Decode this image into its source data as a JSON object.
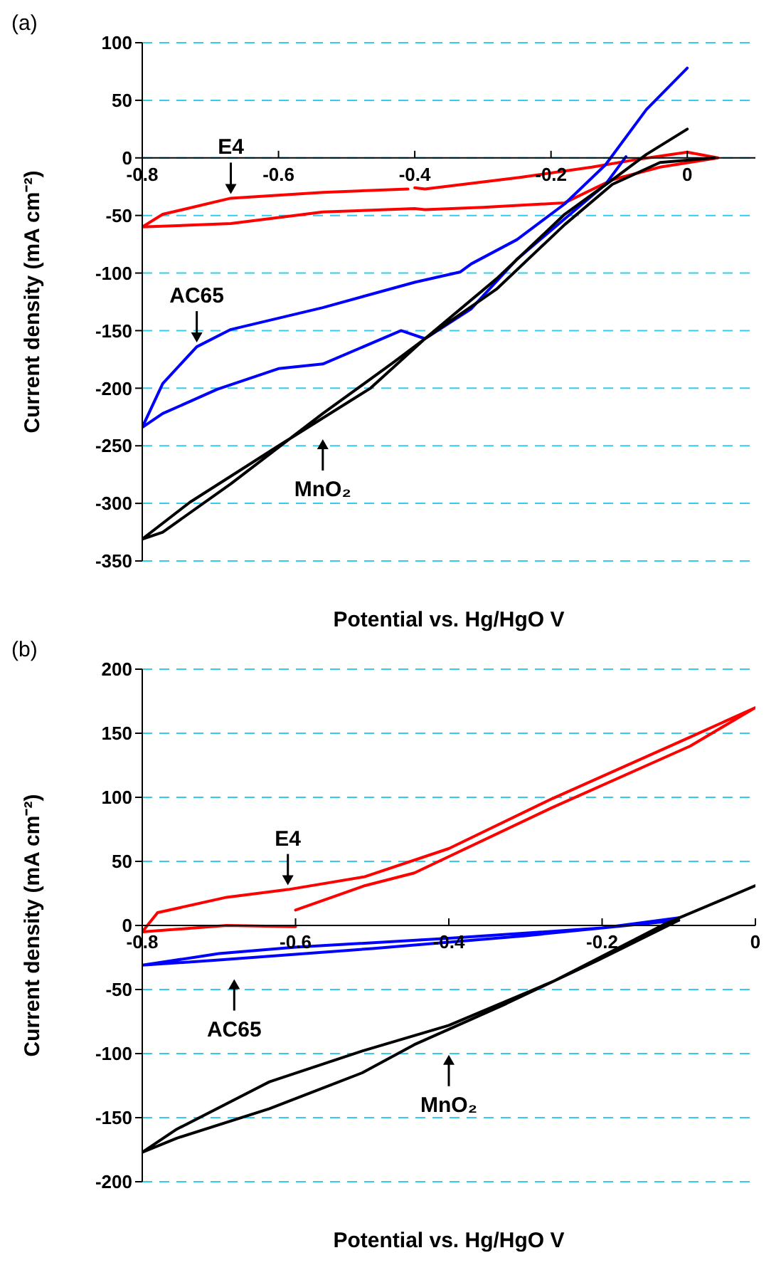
{
  "chart_data": [
    {
      "type": "line",
      "title": "(a)",
      "xlabel": "Potential vs. Hg/HgO V",
      "ylabel": "Current density (mA cm⁻²)",
      "xlim": [
        -0.8,
        0.1
      ],
      "xticks": [
        -0.8,
        -0.6,
        -0.4,
        -0.2,
        0
      ],
      "ylim": [
        -350,
        100
      ],
      "yticks": [
        100,
        50,
        0,
        -50,
        -100,
        -150,
        -200,
        -250,
        -300,
        -350
      ],
      "grid": "y",
      "marker": "none",
      "line_style": "solid",
      "series": [
        {
          "color": "#ff0000",
          "x": [
            -0.4,
            -0.385,
            -0.246,
            -0.14,
            -0.07,
            0,
            0.045,
            -0.04,
            -0.11,
            -0.18,
            -0.3,
            -0.385,
            -0.4,
            -0.535,
            -0.67,
            -0.8,
            -0.77,
            -0.67,
            -0.535,
            -0.41
          ],
          "values": [
            -26,
            -27,
            -17,
            -8,
            -1,
            5,
            0,
            -8,
            -19,
            -39,
            -43,
            -45,
            -44,
            -47,
            -57,
            -60,
            -49,
            -35,
            -30,
            -27
          ]
        },
        {
          "color": "#0000ff",
          "x": [
            -0.09,
            -0.12,
            -0.18,
            -0.25,
            -0.317,
            -0.385,
            -0.42,
            -0.535,
            -0.6,
            -0.69,
            -0.77,
            -0.8,
            -0.77,
            -0.72,
            -0.67,
            -0.535,
            -0.4,
            -0.333,
            -0.317,
            -0.25,
            -0.18,
            -0.12,
            -0.06,
            0
          ],
          "values": [
            1,
            -23,
            -53,
            -88,
            -131,
            -157,
            -150,
            -179,
            -183,
            -201,
            -222,
            -234,
            -196,
            -164,
            -149,
            -130,
            -108,
            -99,
            -92,
            -71,
            -40,
            -6,
            42,
            78
          ]
        },
        {
          "color": "#000000",
          "x": [
            0.04,
            -0.04,
            -0.11,
            -0.18,
            -0.28,
            -0.385,
            -0.43,
            -0.535,
            -0.67,
            -0.77,
            -0.8,
            -0.73,
            -0.6,
            -0.465,
            -0.385,
            -0.28,
            -0.18,
            -0.11,
            -0.06,
            0
          ],
          "values": [
            0,
            -4,
            -23,
            -58,
            -114,
            -157,
            -177,
            -222,
            -283,
            -325,
            -331,
            -299,
            -250,
            -200,
            -157,
            -105,
            -49,
            -19,
            3,
            25
          ]
        }
      ],
      "annotations": [
        {
          "text": "E4",
          "x": -0.67,
          "y": -35
        },
        {
          "text": "AC65",
          "x": -0.72,
          "y": -164
        },
        {
          "text": "MnO₂",
          "x": -0.535,
          "y": -222
        }
      ]
    },
    {
      "type": "line",
      "title": "(b)",
      "xlabel": "Potential vs. Hg/HgO V",
      "ylabel": "Current density (mA cm⁻²)",
      "xlim": [
        -0.8,
        0
      ],
      "xticks": [
        -0.8,
        -0.6,
        -0.4,
        -0.2,
        0
      ],
      "ylim": [
        -200,
        200
      ],
      "yticks": [
        200,
        150,
        100,
        50,
        0,
        -50,
        -100,
        -150,
        -200
      ],
      "grid": "y",
      "marker": "none",
      "line_style": "solid",
      "series": [
        {
          "color": "#ff0000",
          "x": [
            -0.6,
            -0.69,
            -0.8,
            -0.78,
            -0.69,
            -0.61,
            -0.51,
            -0.4,
            -0.265,
            -0.085,
            0,
            -0.085,
            -0.265,
            -0.445,
            -0.51,
            -0.6
          ],
          "values": [
            -1,
            0,
            -5,
            10,
            22,
            28,
            38,
            60,
            99,
            147,
            170,
            140,
            92,
            41,
            31,
            12
          ]
        },
        {
          "color": "#0000ff",
          "x": [
            -0.1,
            -0.3,
            -0.5,
            -0.7,
            -0.8,
            -0.7,
            -0.6,
            -0.4,
            -0.2,
            -0.1
          ],
          "values": [
            4,
            -8,
            -18,
            -27,
            -31,
            -22,
            -17,
            -10,
            -2,
            6
          ]
        },
        {
          "color": "#000000",
          "x": [
            -0.1,
            -0.205,
            -0.325,
            -0.4,
            -0.445,
            -0.513,
            -0.634,
            -0.755,
            -0.8,
            -0.755,
            -0.634,
            -0.513,
            -0.4,
            -0.265,
            -0.115,
            0
          ],
          "values": [
            4,
            -27,
            -61,
            -81,
            -93,
            -115,
            -143,
            -166,
            -177,
            -159,
            -122,
            -98,
            -78,
            -44,
            2,
            31
          ]
        }
      ],
      "annotations": [
        {
          "text": "E4",
          "x": -0.61,
          "y": 28
        },
        {
          "text": "AC65",
          "x": -0.68,
          "y": -22
        },
        {
          "text": "MnO₂",
          "x": -0.4,
          "y": -81
        }
      ]
    }
  ]
}
